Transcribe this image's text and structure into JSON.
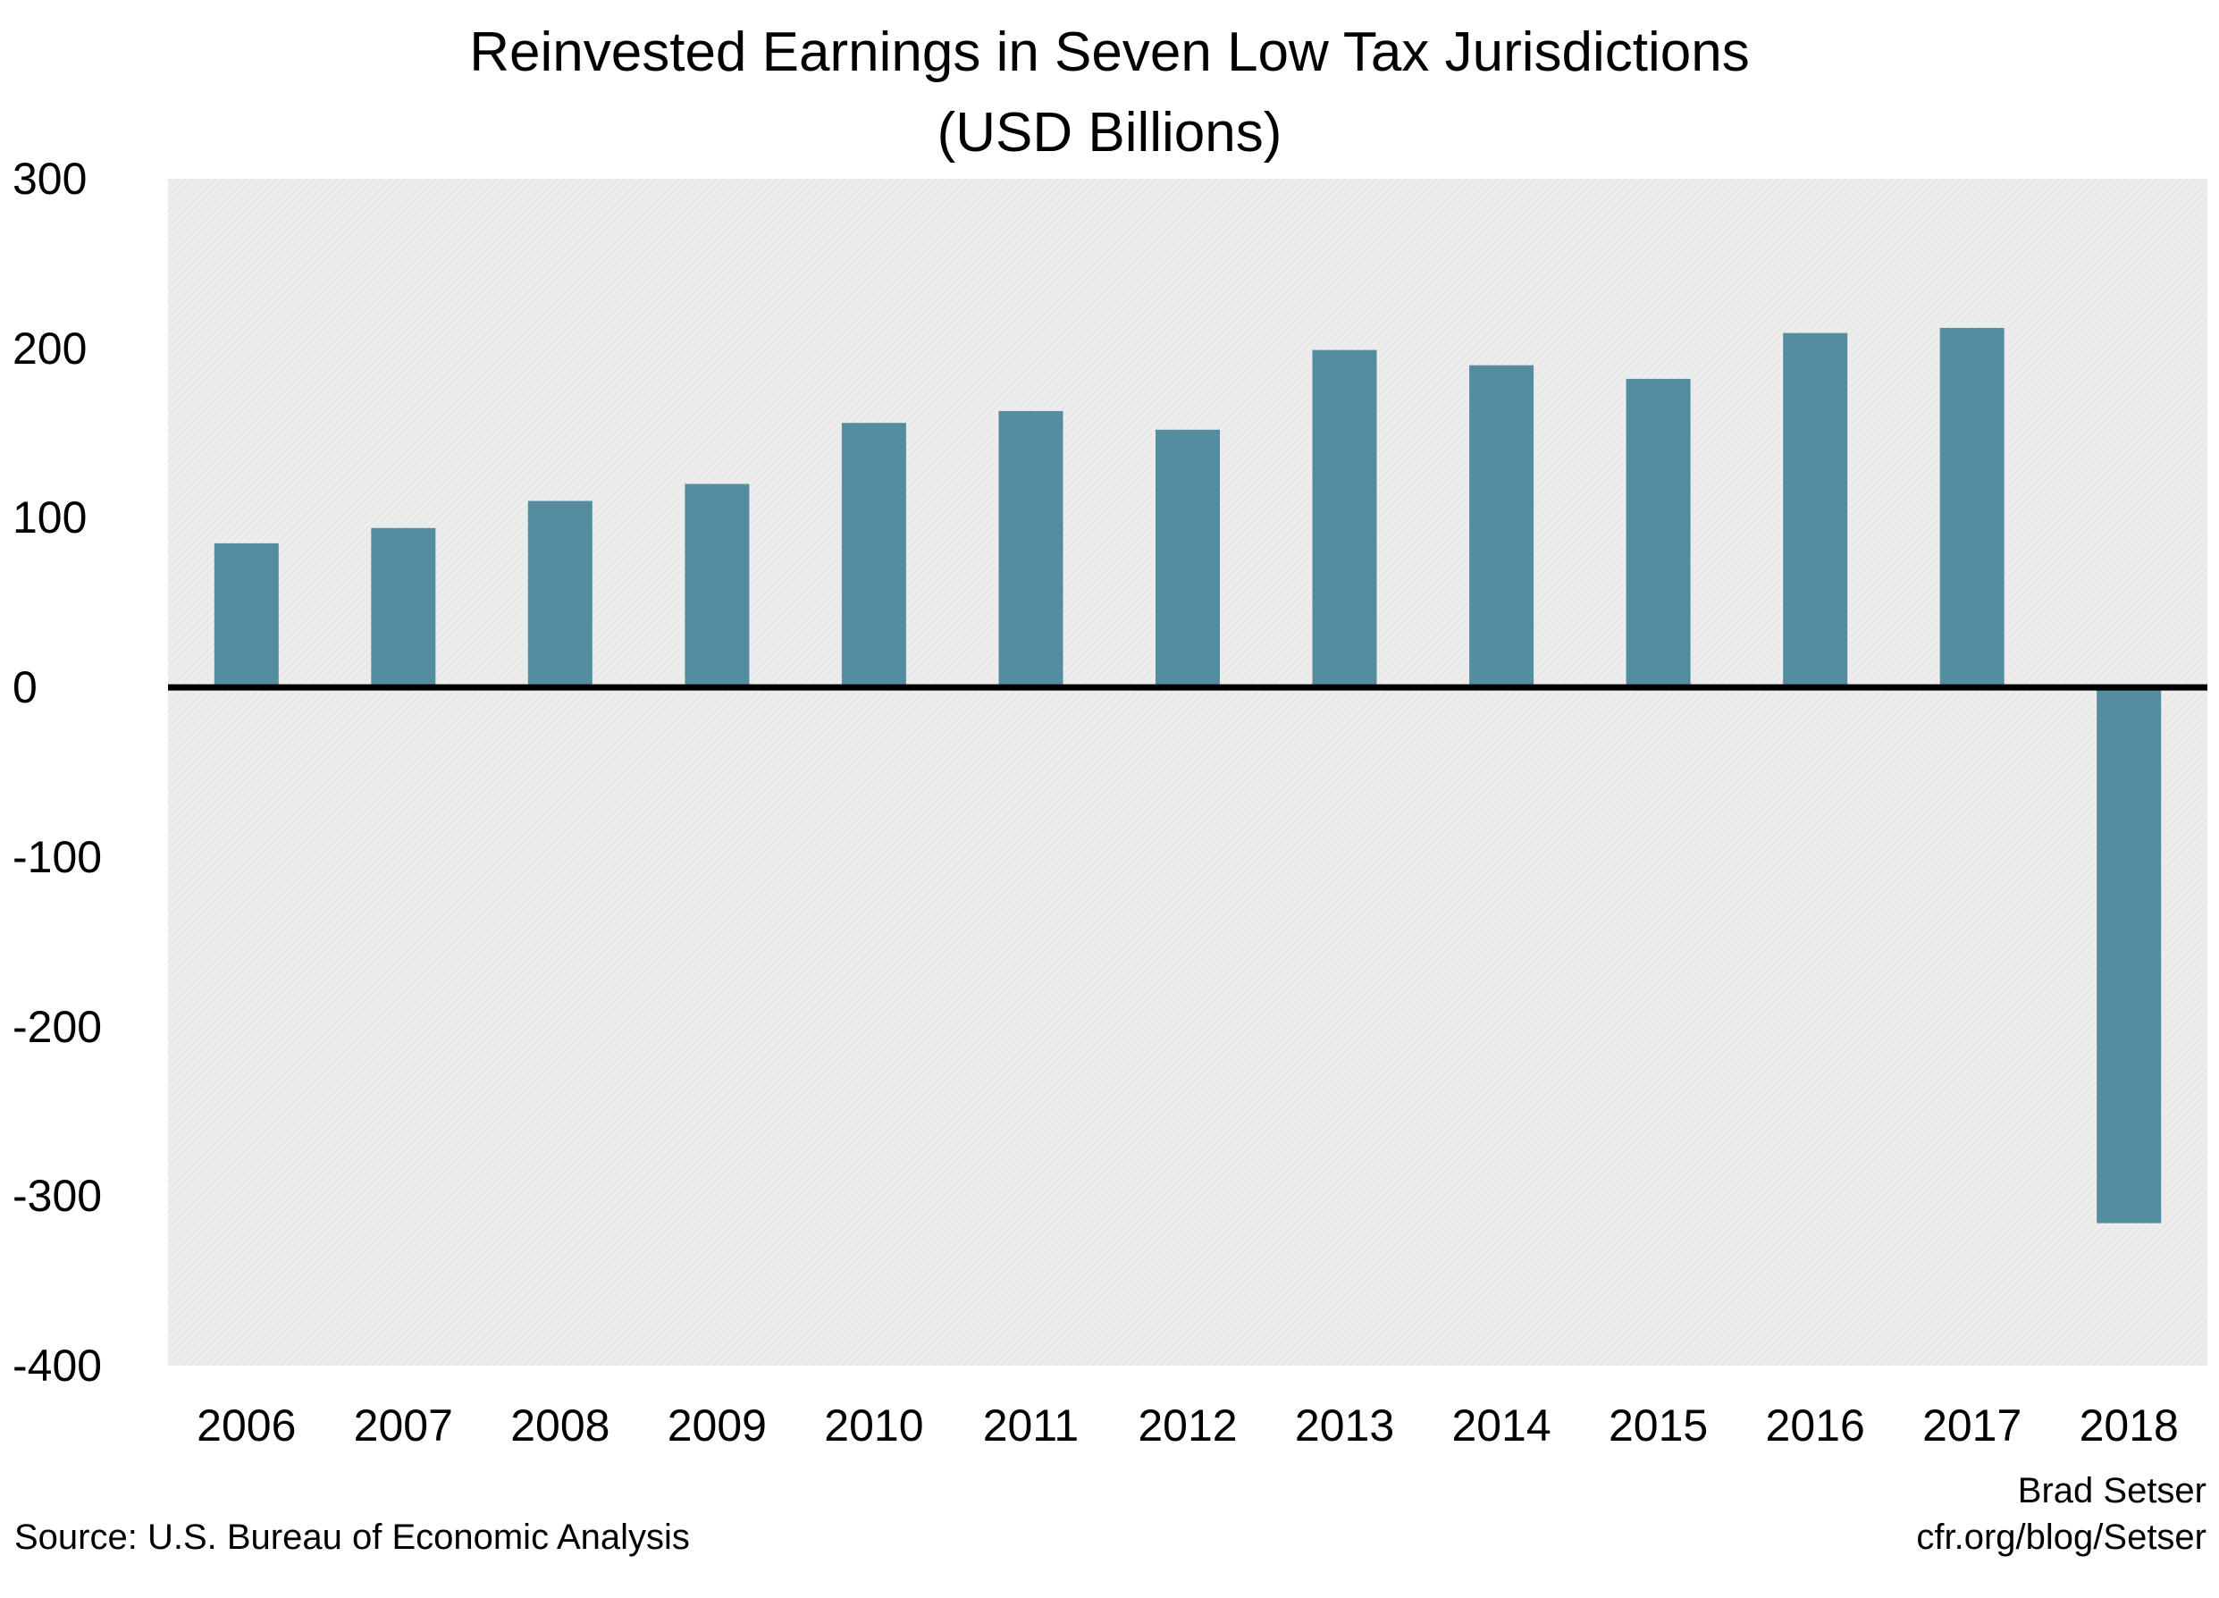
{
  "chart_data": {
    "type": "bar",
    "title": "Reinvested Earnings in Seven Low Tax Jurisdictions",
    "subtitle": "(USD Billions)",
    "categories": [
      "2006",
      "2007",
      "2008",
      "2009",
      "2010",
      "2011",
      "2012",
      "2013",
      "2014",
      "2015",
      "2016",
      "2017",
      "2018"
    ],
    "values": [
      85,
      94,
      110,
      120,
      156,
      163,
      152,
      199,
      190,
      182,
      209,
      212,
      -316
    ],
    "ylim": [
      -400,
      300
    ],
    "yticks": [
      "300",
      "200",
      "100",
      "0",
      "-100",
      "-200",
      "-300",
      "-400"
    ],
    "xlabel": "",
    "ylabel": "",
    "legend": "none",
    "grid": false,
    "bar_color": "#548da0",
    "plot_background": "#ececec",
    "zero_line_color": "#000000"
  },
  "footer": {
    "source": "Source: U.S. Bureau of Economic Analysis",
    "author": "Brad Setser",
    "url": "cfr.org/blog/Setser"
  }
}
